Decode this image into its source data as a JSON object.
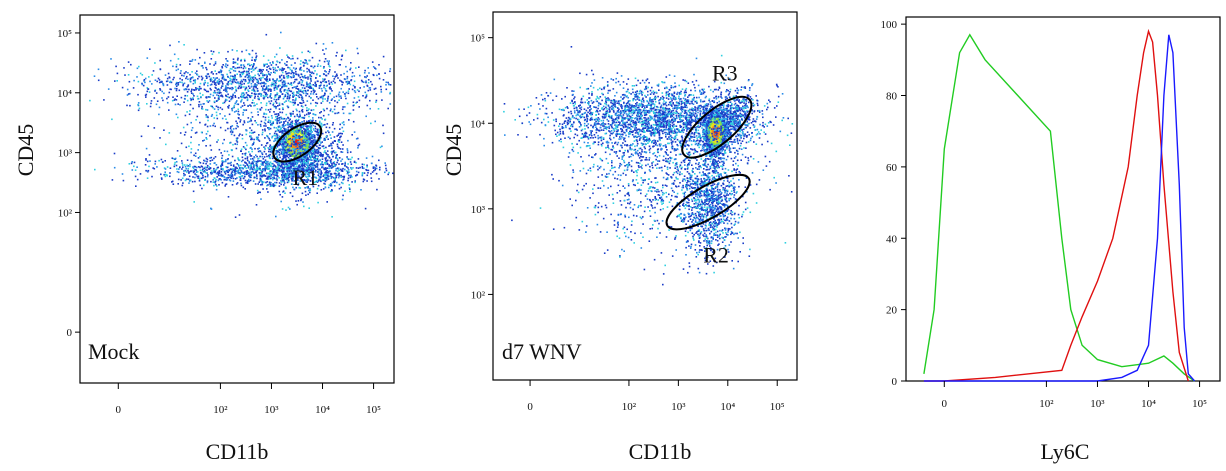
{
  "chart_data": [
    {
      "type": "scatter",
      "xlabel": "CD11b",
      "ylabel": "CD45",
      "annotation": "Mock",
      "x_ticks": [
        "0",
        "10²",
        "10³",
        "10⁴",
        "10⁵"
      ],
      "y_ticks": [
        "0",
        "10²",
        "10³",
        "10⁴",
        "10⁵"
      ],
      "populations": [
        {
          "x": 3000,
          "y": 1500,
          "sx": 0.3,
          "sy": 0.3,
          "n": 1200,
          "dense": true
        },
        {
          "x": 3500,
          "y": 1000,
          "sx": 0.45,
          "sy": 0.35,
          "n": 900
        },
        {
          "x": 800,
          "y": 500,
          "sx": 1.1,
          "sy": 0.12,
          "n": 1100
        },
        {
          "x": 600,
          "y": 15000,
          "sx": 1.2,
          "sy": 0.22,
          "n": 1300
        },
        {
          "x": 500,
          "y": 3000,
          "sx": 1.0,
          "sy": 0.55,
          "n": 700
        }
      ],
      "gates": [
        {
          "name": "R1",
          "cx": 3200,
          "cy": 1500,
          "rx": 0.27,
          "ry": 0.46,
          "angle": -35
        }
      ]
    },
    {
      "type": "scatter",
      "xlabel": "CD11b",
      "ylabel": "CD45",
      "annotation": "d7 WNV",
      "x_ticks": [
        "0",
        "10²",
        "10³",
        "10⁴",
        "10⁵"
      ],
      "y_ticks": [
        "10²",
        "10³",
        "10⁴",
        "10⁵"
      ],
      "populations": [
        {
          "x": 5500,
          "y": 8000,
          "sx": 0.2,
          "sy": 0.22,
          "n": 1500,
          "dense": true
        },
        {
          "x": 4000,
          "y": 1200,
          "sx": 0.3,
          "sy": 0.3,
          "n": 1000
        },
        {
          "x": 300,
          "y": 12000,
          "sx": 1.0,
          "sy": 0.18,
          "n": 2200
        },
        {
          "x": 400,
          "y": 3000,
          "sx": 0.9,
          "sy": 0.4,
          "n": 1000
        },
        {
          "x": 15000,
          "y": 12000,
          "sx": 0.2,
          "sy": 0.15,
          "n": 400
        }
      ],
      "gates": [
        {
          "name": "R3",
          "cx": 6000,
          "cy": 9000,
          "rx": 0.34,
          "ry": 0.5,
          "angle": -40
        },
        {
          "name": "R2",
          "cx": 4000,
          "cy": 1200,
          "rx": 0.32,
          "ry": 0.55,
          "angle": -30
        }
      ]
    },
    {
      "type": "line",
      "xlabel": "Ly6C",
      "ylabel": "",
      "ylim": [
        0,
        100
      ],
      "y_ticks": [
        0,
        20,
        40,
        60,
        80,
        100
      ],
      "x_ticks": [
        "0",
        "10²",
        "10³",
        "10⁴",
        "10⁵"
      ],
      "series": [
        {
          "color": "#22cc22",
          "points": [
            [
              -40,
              2
            ],
            [
              -20,
              20
            ],
            [
              0,
              65
            ],
            [
              30,
              92
            ],
            [
              50,
              97
            ],
            [
              80,
              90
            ],
            [
              120,
              70
            ],
            [
              200,
              40
            ],
            [
              300,
              20
            ],
            [
              500,
              10
            ],
            [
              1000,
              6
            ],
            [
              3000,
              4
            ],
            [
              10000,
              5
            ],
            [
              20000,
              7
            ],
            [
              30000,
              5
            ],
            [
              50000,
              2
            ],
            [
              80000,
              0
            ]
          ]
        },
        {
          "color": "#e01010",
          "points": [
            [
              -40,
              0
            ],
            [
              0,
              0
            ],
            [
              100,
              1
            ],
            [
              200,
              3
            ],
            [
              300,
              10
            ],
            [
              500,
              18
            ],
            [
              1000,
              28
            ],
            [
              2000,
              40
            ],
            [
              4000,
              60
            ],
            [
              6000,
              80
            ],
            [
              8000,
              92
            ],
            [
              10000,
              98
            ],
            [
              12000,
              95
            ],
            [
              15000,
              80
            ],
            [
              20000,
              55
            ],
            [
              30000,
              25
            ],
            [
              40000,
              8
            ],
            [
              60000,
              0
            ]
          ]
        },
        {
          "color": "#1a1aff",
          "points": [
            [
              -40,
              0
            ],
            [
              1000,
              0
            ],
            [
              3000,
              1
            ],
            [
              6000,
              3
            ],
            [
              10000,
              10
            ],
            [
              15000,
              40
            ],
            [
              20000,
              80
            ],
            [
              25000,
              97
            ],
            [
              30000,
              92
            ],
            [
              40000,
              55
            ],
            [
              50000,
              15
            ],
            [
              60000,
              2
            ],
            [
              80000,
              0
            ]
          ]
        }
      ]
    }
  ]
}
